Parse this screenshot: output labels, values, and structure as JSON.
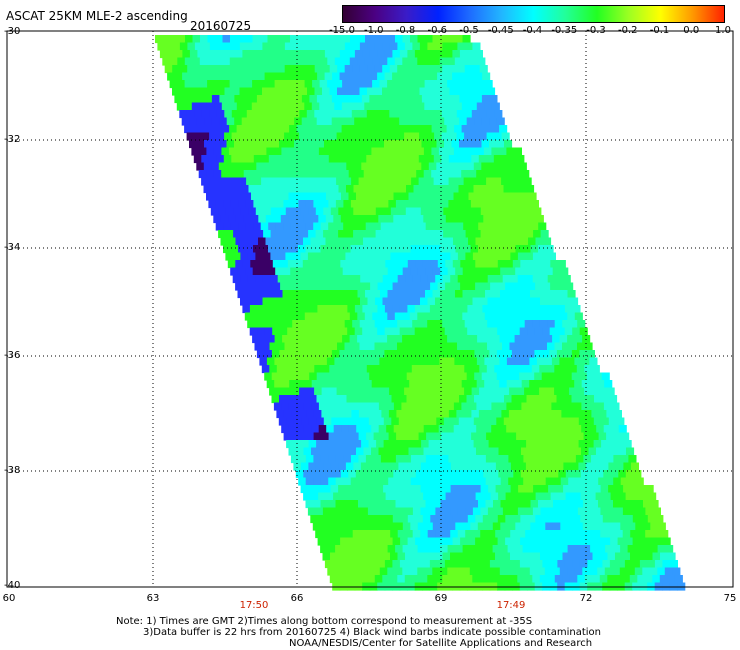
{
  "header": {
    "title": "ASCAT 25KM MLE-2 ascending",
    "date": "20160725"
  },
  "colorbar": {
    "labels": [
      "-15.0",
      "-1.0",
      "-0.8",
      "-0.6",
      "-0.5",
      "-0.45",
      "-0.4",
      "-0.35",
      "-0.3",
      "-0.2",
      "-0.1",
      "0.0",
      "1.0"
    ],
    "colors": [
      "#330033",
      "#4b0082",
      "#3a1cc8",
      "#0022ff",
      "#1e6cff",
      "#22b6ff",
      "#00ffff",
      "#22ff9a",
      "#22ff22",
      "#9cff22",
      "#ffff00",
      "#ff9a00",
      "#ff2200"
    ]
  },
  "axes": {
    "lat_labels": [
      "-30",
      "-32",
      "-34",
      "-36",
      "-38",
      "-40"
    ],
    "lon_labels": [
      "60",
      "63",
      "66",
      "69",
      "72",
      "75"
    ],
    "time_labels": [
      "17:50",
      "17:49"
    ]
  },
  "notes": {
    "line1": "Note: 1) Times are GMT 2)Times along bottom correspond to measurement at -35S",
    "line2": "3)Data buffer is 22 hrs from 20160725 4) Black wind barbs indicate possible contamination",
    "line3": "NOAA/NESDIS/Center for Satellite Applications and Research"
  }
}
